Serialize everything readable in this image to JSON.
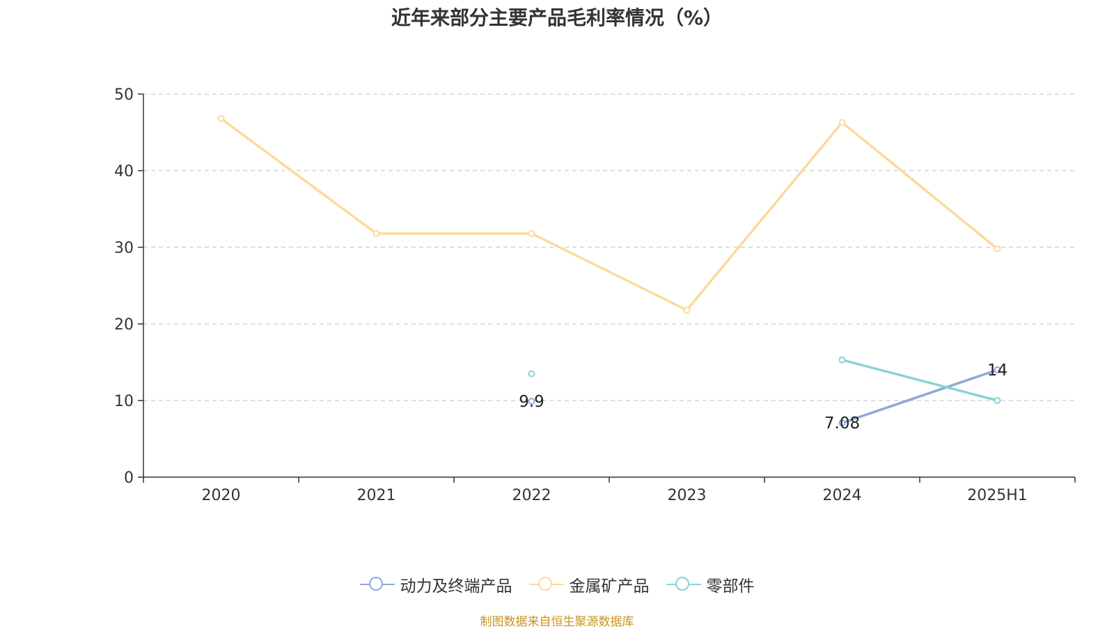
{
  "chart_data": {
    "type": "line",
    "title": "近年来部分主要产品毛利率情况（%）",
    "categories": [
      "2020",
      "2021",
      "2022",
      "2023",
      "2024",
      "2025H1"
    ],
    "ylim": [
      0,
      50
    ],
    "yticks": [
      0,
      10,
      20,
      30,
      40,
      50
    ],
    "grid": true,
    "legend_position": "bottom",
    "series": [
      {
        "name": "动力及终端产品",
        "color": "#8fa9d6",
        "values": [
          null,
          null,
          9.9,
          null,
          7.08,
          14
        ],
        "labels": [
          null,
          null,
          "9.9",
          null,
          "7.08",
          "14"
        ]
      },
      {
        "name": "金属矿产品",
        "color": "#fadb9b",
        "values": [
          46.8,
          31.8,
          31.8,
          21.8,
          46.3,
          29.8
        ],
        "labels": [
          null,
          null,
          null,
          null,
          null,
          null
        ]
      },
      {
        "name": "零部件",
        "color": "#88d3d8",
        "values": [
          null,
          null,
          13.5,
          null,
          15.3,
          10
        ],
        "labels": [
          null,
          null,
          null,
          null,
          null,
          null
        ]
      }
    ]
  },
  "source": "制图数据来自恒生聚源数据库"
}
